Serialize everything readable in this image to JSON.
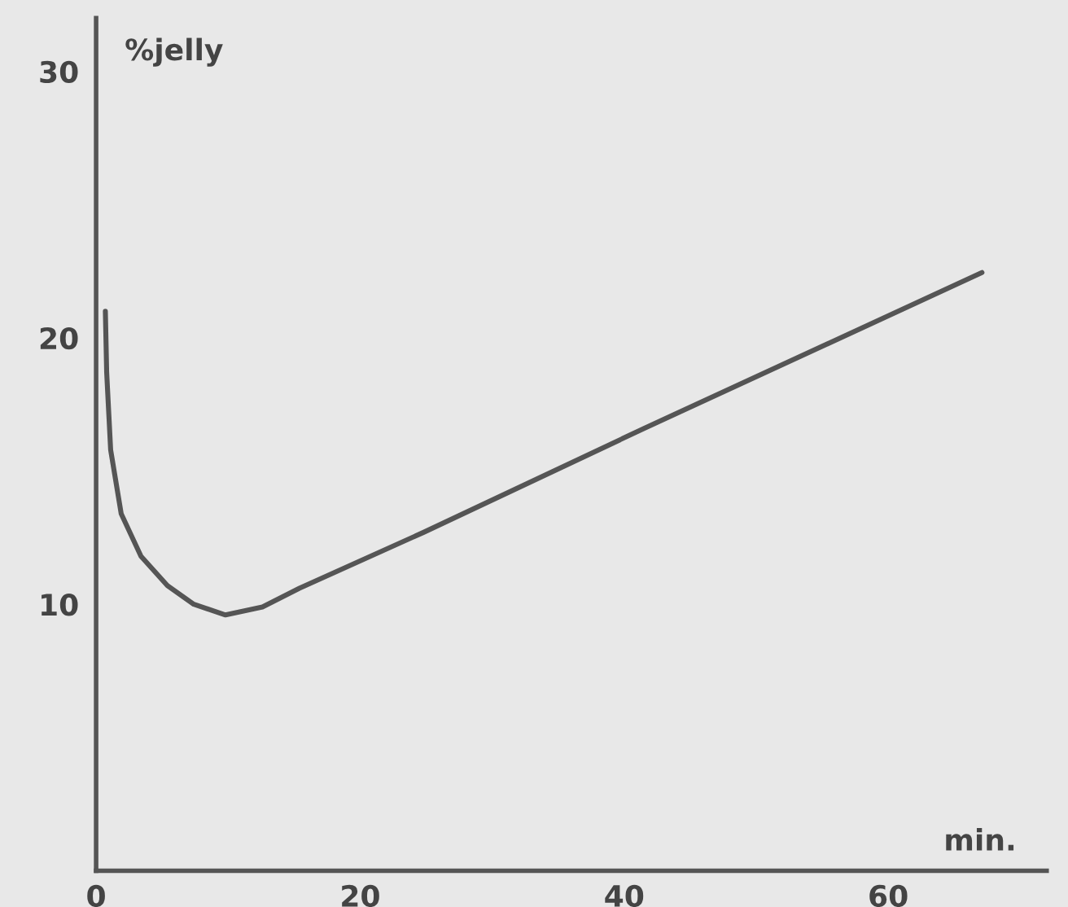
{
  "chart_data": {
    "type": "line",
    "xlabel": "min.",
    "ylabel": "%jelly",
    "x": [
      0.7,
      0.8,
      1.1,
      1.9,
      3.4,
      5.4,
      7.4,
      9.8,
      12.6,
      15.4,
      24.8,
      41.5,
      67.1
    ],
    "series": [
      {
        "color": "#555555",
        "values": [
          21.0,
          18.7,
          15.8,
          13.4,
          11.8,
          10.7,
          10.0,
          9.6,
          9.9,
          10.6,
          12.7,
          16.6,
          22.45
        ]
      }
    ],
    "xlim": [
      0,
      72
    ],
    "ylim": [
      0,
      32
    ],
    "xticks": [
      0,
      20,
      40,
      60
    ],
    "yticks": [
      10,
      20,
      30
    ],
    "grid": false,
    "legend": false,
    "marker": "none",
    "line_style": "solid"
  }
}
